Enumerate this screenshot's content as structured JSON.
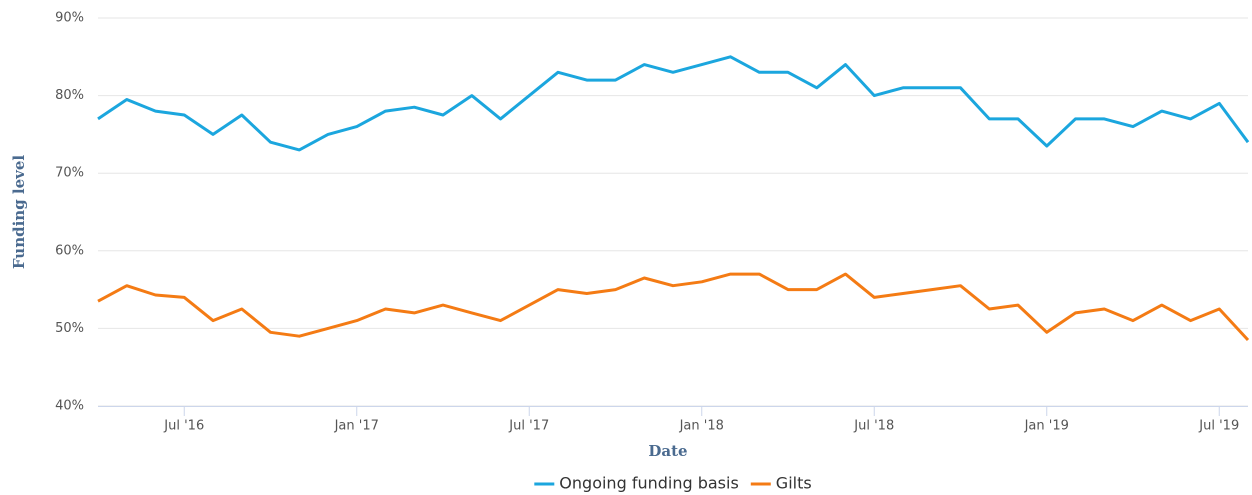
{
  "chart_data": {
    "type": "line",
    "x_label": "Date",
    "y_label": "Funding level",
    "x": [
      "2016-04",
      "2016-05",
      "2016-06",
      "2016-07",
      "2016-08",
      "2016-09",
      "2016-10",
      "2016-11",
      "2016-12",
      "2017-01",
      "2017-02",
      "2017-03",
      "2017-04",
      "2017-05",
      "2017-06",
      "2017-07",
      "2017-08",
      "2017-09",
      "2017-10",
      "2017-11",
      "2017-12",
      "2018-01",
      "2018-02",
      "2018-03",
      "2018-04",
      "2018-05",
      "2018-06",
      "2018-07",
      "2018-08",
      "2018-09",
      "2018-10",
      "2018-11",
      "2018-12",
      "2019-01",
      "2019-02",
      "2019-03",
      "2019-04",
      "2019-05",
      "2019-06",
      "2019-07",
      "2019-08"
    ],
    "series": [
      {
        "name": "Ongoing funding basis",
        "color": "#1ba6de",
        "values": [
          77,
          79.5,
          78,
          77.5,
          75,
          77.5,
          74,
          73,
          75,
          76,
          78,
          78.5,
          77.5,
          80,
          77,
          80,
          83,
          82,
          82,
          84,
          83,
          84,
          85,
          83,
          83,
          81,
          84,
          80,
          81,
          81,
          81,
          77,
          77,
          73.5,
          77,
          77,
          76,
          78,
          77,
          79,
          74
        ]
      },
      {
        "name": "Gilts",
        "color": "#f47b14",
        "values": [
          53.5,
          55.5,
          54.3,
          54,
          51,
          52.5,
          49.5,
          49,
          50,
          51,
          52.5,
          52,
          53,
          52,
          51,
          53,
          55,
          54.5,
          55,
          56.5,
          55.5,
          56,
          57,
          57,
          55,
          55,
          57,
          54,
          54.5,
          55,
          55.5,
          52.5,
          53,
          49.5,
          52,
          52.5,
          51,
          53,
          51,
          52.5,
          48.5
        ]
      }
    ],
    "xlim": [
      "2016-04",
      "2019-08"
    ],
    "xticks": [
      {
        "value": "2016-07",
        "label": "Jul '16"
      },
      {
        "value": "2017-01",
        "label": "Jan '17"
      },
      {
        "value": "2017-07",
        "label": "Jul '17"
      },
      {
        "value": "2018-01",
        "label": "Jan '18"
      },
      {
        "value": "2018-07",
        "label": "Jul '18"
      },
      {
        "value": "2019-01",
        "label": "Jan '19"
      },
      {
        "value": "2019-07",
        "label": "Jul '19"
      }
    ],
    "ylim": [
      40,
      90
    ],
    "yticks": [
      {
        "value": 40,
        "label": "40%"
      },
      {
        "value": 50,
        "label": "50%"
      },
      {
        "value": 60,
        "label": "60%"
      },
      {
        "value": 70,
        "label": "70%"
      },
      {
        "value": 80,
        "label": "80%"
      },
      {
        "value": 90,
        "label": "90%"
      }
    ],
    "grid": true,
    "legend": "bottom"
  }
}
